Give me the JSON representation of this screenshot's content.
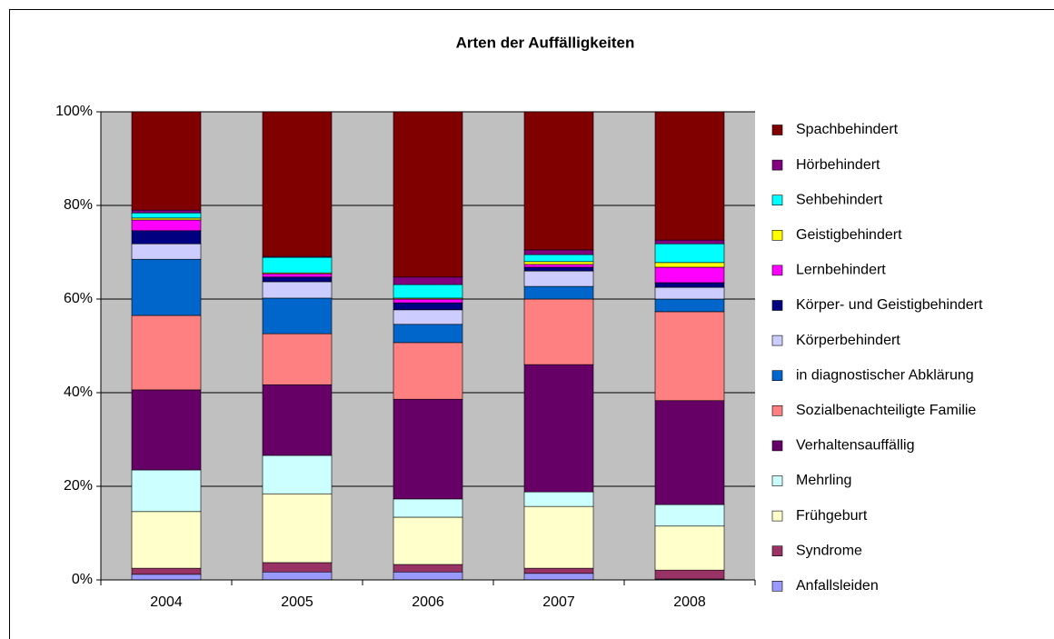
{
  "chart_data": {
    "type": "stacked_bar_percent",
    "title": "Arten der Auffälligkeiten",
    "categories": [
      "2004",
      "2005",
      "2006",
      "2007",
      "2008"
    ],
    "series": [
      {
        "name": "Anfallsleiden",
        "color": "#9999ff",
        "values": [
          1.2,
          1.7,
          1.7,
          1.4,
          0.2
        ]
      },
      {
        "name": "Syndrome",
        "color": "#993366",
        "values": [
          1.3,
          2.0,
          1.6,
          1.1,
          1.9
        ]
      },
      {
        "name": "Frühgeburt",
        "color": "#ffffcc",
        "values": [
          12.1,
          14.7,
          10.1,
          13.2,
          9.4
        ]
      },
      {
        "name": "Mehrling",
        "color": "#ccffff",
        "values": [
          8.9,
          8.2,
          3.9,
          3.1,
          4.6
        ]
      },
      {
        "name": "Verhaltensauffällig",
        "color": "#660066",
        "values": [
          17.1,
          15.1,
          21.3,
          27.2,
          22.2
        ]
      },
      {
        "name": "Sozialbenachteiligte Familie",
        "color": "#ff8080",
        "values": [
          15.9,
          10.9,
          12.1,
          14.0,
          19.0
        ]
      },
      {
        "name": "in diagnostischer Abklärung",
        "color": "#0066cc",
        "values": [
          12.0,
          7.6,
          3.9,
          2.7,
          2.7
        ]
      },
      {
        "name": "Körperbehindert",
        "color": "#ccccff",
        "values": [
          3.3,
          3.5,
          3.1,
          3.3,
          2.5
        ]
      },
      {
        "name": "Körper- und Geistigbehindert",
        "color": "#000080",
        "values": [
          2.8,
          1.0,
          1.5,
          0.8,
          1.0
        ]
      },
      {
        "name": "Lernbehindert",
        "color": "#ff00ff",
        "values": [
          2.3,
          0.7,
          0.8,
          0.6,
          3.3
        ]
      },
      {
        "name": "Geistigbehindert",
        "color": "#ffff00",
        "values": [
          0.4,
          0.2,
          0.2,
          0.6,
          1.0
        ]
      },
      {
        "name": "Sehbehindert",
        "color": "#00ffff",
        "values": [
          1.1,
          3.3,
          2.9,
          1.5,
          4.0
        ]
      },
      {
        "name": "Hörbehindert",
        "color": "#800080",
        "values": [
          0.6,
          0.2,
          1.6,
          1.0,
          0.8
        ]
      },
      {
        "name": "Spachbehindert",
        "color": "#800000",
        "values": [
          21.0,
          30.9,
          35.3,
          29.5,
          27.4
        ]
      }
    ],
    "ylim": [
      0,
      100
    ],
    "yticks": [
      {
        "value": 0,
        "label": "0%"
      },
      {
        "value": 20,
        "label": "20%"
      },
      {
        "value": 40,
        "label": "40%"
      },
      {
        "value": 60,
        "label": "60%"
      },
      {
        "value": 80,
        "label": "80%"
      },
      {
        "value": 100,
        "label": "100%"
      }
    ],
    "grid": true,
    "legend": "right",
    "plot_background": "#c0c0c0"
  }
}
